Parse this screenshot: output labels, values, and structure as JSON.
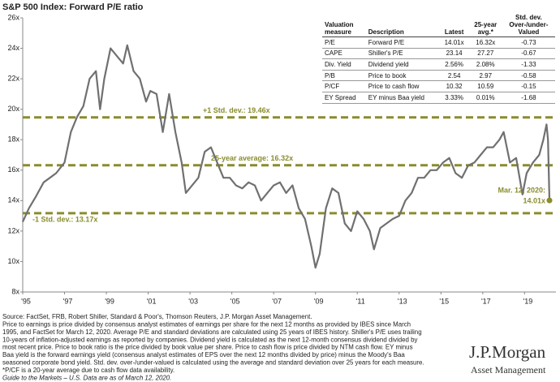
{
  "chart_data": {
    "type": "line",
    "title": "S&P 500 Index: Forward P/E ratio",
    "color": "#707070",
    "x": [
      1995.0,
      1995.3,
      1995.6,
      1996.0,
      1996.3,
      1996.6,
      1997.0,
      1997.3,
      1997.6,
      1997.9,
      1998.2,
      1998.5,
      1998.7,
      1998.9,
      1999.2,
      1999.5,
      1999.8,
      2000.0,
      2000.3,
      2000.6,
      2000.9,
      2001.1,
      2001.4,
      2001.7,
      2002.0,
      2002.3,
      2002.6,
      2002.8,
      2003.1,
      2003.4,
      2003.7,
      2004.0,
      2004.3,
      2004.6,
      2004.9,
      2005.2,
      2005.5,
      2005.8,
      2006.1,
      2006.4,
      2006.7,
      2007.0,
      2007.3,
      2007.6,
      2007.9,
      2008.2,
      2008.5,
      2008.8,
      2009.0,
      2009.2,
      2009.5,
      2009.8,
      2010.1,
      2010.4,
      2010.7,
      2011.0,
      2011.3,
      2011.6,
      2011.8,
      2012.1,
      2012.4,
      2012.7,
      2013.0,
      2013.3,
      2013.6,
      2013.9,
      2014.2,
      2014.5,
      2014.8,
      2015.1,
      2015.4,
      2015.7,
      2016.0,
      2016.3,
      2016.6,
      2016.9,
      2017.2,
      2017.5,
      2017.8,
      2018.0,
      2018.3,
      2018.6,
      2018.9,
      2019.1,
      2019.4,
      2019.7,
      2019.9,
      2020.05,
      2020.12,
      2020.19
    ],
    "values": [
      12.6,
      13.5,
      14.2,
      15.2,
      15.5,
      15.8,
      16.5,
      18.5,
      19.5,
      20.2,
      22.0,
      22.5,
      20.0,
      22.0,
      24.0,
      23.5,
      23.0,
      24.2,
      22.5,
      22.0,
      20.5,
      21.2,
      21.0,
      18.5,
      21.0,
      18.5,
      16.5,
      14.5,
      15.0,
      15.5,
      17.2,
      17.5,
      16.5,
      15.5,
      15.5,
      15.0,
      14.8,
      15.2,
      15.0,
      14.0,
      14.5,
      15.0,
      15.2,
      14.5,
      15.0,
      13.5,
      12.8,
      11.0,
      9.6,
      10.5,
      13.5,
      14.8,
      14.5,
      12.5,
      12.0,
      13.3,
      12.8,
      12.0,
      10.8,
      12.2,
      12.5,
      12.8,
      13.0,
      14.0,
      14.5,
      15.5,
      15.5,
      16.0,
      16.0,
      16.5,
      16.8,
      15.8,
      15.5,
      16.3,
      16.5,
      17.0,
      17.5,
      17.5,
      18.0,
      18.5,
      16.5,
      16.8,
      14.4,
      15.8,
      16.5,
      17.0,
      18.0,
      19.0,
      18.0,
      14.01
    ],
    "xlim": [
      1995,
      2020.5
    ],
    "ylim": [
      8,
      26
    ],
    "xticks": [
      {
        "value": 1995,
        "label": "'95"
      },
      {
        "value": 1997,
        "label": "'97"
      },
      {
        "value": 1999,
        "label": "'99"
      },
      {
        "value": 2001,
        "label": "'01"
      },
      {
        "value": 2003,
        "label": "'03"
      },
      {
        "value": 2005,
        "label": "'05"
      },
      {
        "value": 2007,
        "label": "'07"
      },
      {
        "value": 2009,
        "label": "'09"
      },
      {
        "value": 2011,
        "label": "'11"
      },
      {
        "value": 2013,
        "label": "'13"
      },
      {
        "value": 2015,
        "label": "'15"
      },
      {
        "value": 2017,
        "label": "'17"
      },
      {
        "value": 2019,
        "label": "'19"
      }
    ],
    "yticks": [
      {
        "value": 8,
        "label": "8x"
      },
      {
        "value": 10,
        "label": "10x"
      },
      {
        "value": 12,
        "label": "12x"
      },
      {
        "value": 14,
        "label": "14x"
      },
      {
        "value": 16,
        "label": "16x"
      },
      {
        "value": 18,
        "label": "18x"
      },
      {
        "value": 20,
        "label": "20x"
      },
      {
        "value": 22,
        "label": "22x"
      },
      {
        "value": 24,
        "label": "24x"
      },
      {
        "value": 26,
        "label": "26x"
      }
    ],
    "reference_lines": {
      "color": "#8a8c2e",
      "lines": [
        {
          "value": 19.46,
          "label": "+1 Std. dev.: 19.46x"
        },
        {
          "value": 16.32,
          "label": "25-year average: 16.32x"
        },
        {
          "value": 13.17,
          "label": "-1 Std. dev.: 13.17x"
        }
      ]
    },
    "annotation": {
      "date": "Mar. 12, 2020:",
      "value_label": "14.01x"
    }
  },
  "table": {
    "header": [
      [
        "Valuation",
        "measure"
      ],
      [
        "Description"
      ],
      [
        "Latest"
      ],
      [
        "25-year",
        "avg.*"
      ],
      [
        "Std. dev.",
        "Over-/under-",
        "Valued"
      ]
    ],
    "rows": [
      [
        "P/E",
        "Forward P/E",
        "14.01x",
        "16.32x",
        "-0.73"
      ],
      [
        "CAPE",
        "Shiller's P/E",
        "23.14",
        "27.27",
        "-0.67"
      ],
      [
        "Div. Yield",
        "Dividend yield",
        "2.56%",
        "2.08%",
        "-1.33"
      ],
      [
        "P/B",
        "Price to book",
        "2.54",
        "2.97",
        "-0.58"
      ],
      [
        "P/CF",
        "Price to cash flow",
        "10.32",
        "10.59",
        "-0.15"
      ],
      [
        "EY Spread",
        "EY minus Baa yield",
        "3.33%",
        "0.01%",
        "-1.68"
      ]
    ]
  },
  "footnotes": [
    "Source: FactSet, FRB, Robert Shiller, Standard & Poor's, Thomson Reuters, J.P. Morgan Asset Management.",
    "Price to earnings is price divided by consensus analyst estimates of earnings per share for the next 12 months as provided by IBES since March",
    "1995, and FactSet for March 12, 2020. Average P/E and standard deviations are calculated using 25 years of IBES history. Shiller's P/E uses trailing",
    "10-years of inflation-adjusted earnings as reported by companies. Dividend yield is calculated as the next 12-month consensus dividend divided by",
    "most recent price. Price to book ratio is the price divided by book value per share. Price to cash flow is price divided by NTM cash flow. EY minus",
    "Baa yield is the forward earnings yield (consensus analyst estimates of EPS over the next 12 months divided by price) minus the Moody's Baa",
    "seasoned corporate bond yield. Std. dev. over-/under-valued is calculated using the average and standard deviation over 25 years for each measure.",
    "*P/CF is a 20-year average due to cash flow data availability.",
    "Guide to the Markets – U.S. Data are as of March 12, 2020."
  ],
  "logo": {
    "name": "J.P.Morgan",
    "division": "Asset Management"
  }
}
